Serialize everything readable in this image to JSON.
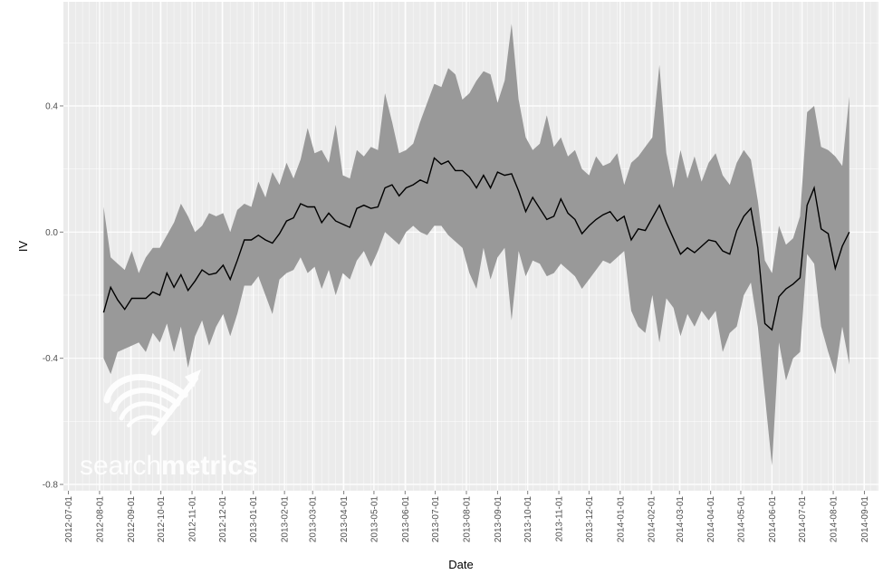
{
  "chart_data": {
    "type": "area",
    "xlabel": "Date",
    "ylabel": "IV",
    "x_ticks": [
      "2012-07-01",
      "2012-08-01",
      "2012-09-01",
      "2012-10-01",
      "2012-11-01",
      "2012-12-01",
      "2013-01-01",
      "2013-02-01",
      "2013-03-01",
      "2013-04-01",
      "2013-05-01",
      "2013-06-01",
      "2013-07-01",
      "2013-08-01",
      "2013-09-01",
      "2013-10-01",
      "2013-11-01",
      "2013-12-01",
      "2014-01-01",
      "2014-02-01",
      "2014-03-01",
      "2014-04-01",
      "2014-05-01",
      "2014-06-01",
      "2014-07-01",
      "2014-08-01",
      "2014-09-01"
    ],
    "y_ticks": [
      -0.8,
      -0.4,
      0.0,
      0.4
    ],
    "y_tick_labels": [
      "-0.8",
      "-0.4",
      "0.0",
      "0.4"
    ],
    "xlim": [
      "2012-06-26",
      "2014-09-15"
    ],
    "ylim": [
      -0.82,
      0.73
    ],
    "grid": true,
    "colors": {
      "panel": "#ebebeb",
      "grid": "#ffffff",
      "line": "#000000",
      "ribbon": "#999999",
      "axis_text": "#4d4d4d"
    },
    "watermark": "searchmetrics",
    "series": [
      {
        "x": [
          "2012-08-05",
          "2012-08-12",
          "2012-08-19",
          "2012-08-26",
          "2012-09-02",
          "2012-09-09",
          "2012-09-16",
          "2012-09-23",
          "2012-09-30",
          "2012-10-07",
          "2012-10-14",
          "2012-10-21",
          "2012-10-28",
          "2012-11-04",
          "2012-11-11",
          "2012-11-18",
          "2012-11-25",
          "2012-12-02",
          "2012-12-09",
          "2012-12-16",
          "2012-12-23",
          "2012-12-30",
          "2013-01-06",
          "2013-01-13",
          "2013-01-20",
          "2013-01-27",
          "2013-02-03",
          "2013-02-10",
          "2013-02-17",
          "2013-02-24",
          "2013-03-03",
          "2013-03-10",
          "2013-03-17",
          "2013-03-24",
          "2013-03-31",
          "2013-04-07",
          "2013-04-14",
          "2013-04-21",
          "2013-04-28",
          "2013-05-05",
          "2013-05-12",
          "2013-05-19",
          "2013-05-26",
          "2013-06-02",
          "2013-06-09",
          "2013-06-16",
          "2013-06-23",
          "2013-06-30",
          "2013-07-07",
          "2013-07-14",
          "2013-07-21",
          "2013-07-28",
          "2013-08-04",
          "2013-08-11",
          "2013-08-18",
          "2013-08-25",
          "2013-09-01",
          "2013-09-08",
          "2013-09-15",
          "2013-09-22",
          "2013-09-29",
          "2013-10-06",
          "2013-10-13",
          "2013-10-20",
          "2013-10-27",
          "2013-11-03",
          "2013-11-10",
          "2013-11-17",
          "2013-11-24",
          "2013-12-01",
          "2013-12-08",
          "2013-12-15",
          "2013-12-22",
          "2013-12-29",
          "2014-01-05",
          "2014-01-12",
          "2014-01-19",
          "2014-01-26",
          "2014-02-02",
          "2014-02-09",
          "2014-02-16",
          "2014-02-23",
          "2014-03-02",
          "2014-03-09",
          "2014-03-16",
          "2014-03-23",
          "2014-03-30",
          "2014-04-06",
          "2014-04-13",
          "2014-04-20",
          "2014-04-27",
          "2014-05-04",
          "2014-05-11",
          "2014-05-18",
          "2014-05-25",
          "2014-06-01",
          "2014-06-08",
          "2014-06-15",
          "2014-06-22",
          "2014-06-29",
          "2014-07-06",
          "2014-07-13",
          "2014-07-20",
          "2014-07-27",
          "2014-08-03",
          "2014-08-10",
          "2014-08-17"
        ],
        "y": [
          -0.255,
          -0.175,
          -0.215,
          -0.245,
          -0.21,
          -0.21,
          -0.21,
          -0.19,
          -0.2,
          -0.13,
          -0.175,
          -0.135,
          -0.185,
          -0.155,
          -0.12,
          -0.135,
          -0.13,
          -0.105,
          -0.15,
          -0.09,
          -0.025,
          -0.025,
          -0.01,
          -0.025,
          -0.035,
          -0.005,
          0.035,
          0.045,
          0.09,
          0.08,
          0.08,
          0.03,
          0.06,
          0.035,
          0.025,
          0.015,
          0.075,
          0.085,
          0.075,
          0.08,
          0.14,
          0.15,
          0.115,
          0.14,
          0.15,
          0.165,
          0.155,
          0.235,
          0.215,
          0.225,
          0.195,
          0.195,
          0.175,
          0.14,
          0.18,
          0.14,
          0.19,
          0.18,
          0.185,
          0.13,
          0.065,
          0.11,
          0.075,
          0.04,
          0.05,
          0.105,
          0.06,
          0.04,
          -0.005,
          0.02,
          0.04,
          0.055,
          0.065,
          0.035,
          0.05,
          -0.025,
          0.01,
          0.005,
          0.045,
          0.085,
          0.03,
          -0.02,
          -0.07,
          -0.05,
          -0.065,
          -0.045,
          -0.025,
          -0.03,
          -0.06,
          -0.07,
          0.005,
          0.05,
          0.075,
          -0.05,
          -0.29,
          -0.31,
          -0.205,
          -0.18,
          -0.165,
          -0.145,
          0.085,
          0.14,
          0.01,
          -0.005,
          -0.115,
          -0.045,
          0.0
        ],
        "lower": [
          -0.4,
          -0.45,
          -0.38,
          -0.37,
          -0.36,
          -0.35,
          -0.38,
          -0.32,
          -0.35,
          -0.29,
          -0.38,
          -0.3,
          -0.43,
          -0.33,
          -0.28,
          -0.36,
          -0.3,
          -0.26,
          -0.33,
          -0.26,
          -0.17,
          -0.17,
          -0.14,
          -0.2,
          -0.26,
          -0.15,
          -0.13,
          -0.12,
          -0.08,
          -0.13,
          -0.11,
          -0.18,
          -0.12,
          -0.2,
          -0.13,
          -0.15,
          -0.09,
          -0.06,
          -0.11,
          -0.06,
          0.0,
          -0.02,
          -0.04,
          0.0,
          0.02,
          0.0,
          -0.01,
          0.02,
          0.02,
          -0.01,
          -0.03,
          -0.05,
          -0.13,
          -0.18,
          -0.05,
          -0.15,
          -0.08,
          -0.05,
          -0.28,
          -0.06,
          -0.14,
          -0.09,
          -0.1,
          -0.14,
          -0.13,
          -0.1,
          -0.12,
          -0.14,
          -0.18,
          -0.15,
          -0.12,
          -0.09,
          -0.1,
          -0.08,
          -0.06,
          -0.25,
          -0.3,
          -0.32,
          -0.2,
          -0.35,
          -0.21,
          -0.24,
          -0.33,
          -0.26,
          -0.3,
          -0.25,
          -0.28,
          -0.25,
          -0.38,
          -0.32,
          -0.3,
          -0.2,
          -0.16,
          -0.3,
          -0.52,
          -0.74,
          -0.35,
          -0.47,
          -0.4,
          -0.38,
          -0.07,
          -0.1,
          -0.3,
          -0.38,
          -0.45,
          -0.3,
          -0.42
        ],
        "upper": [
          0.08,
          -0.08,
          -0.1,
          -0.12,
          -0.06,
          -0.13,
          -0.08,
          -0.05,
          -0.05,
          -0.01,
          0.03,
          0.09,
          0.05,
          0.0,
          0.02,
          0.06,
          0.05,
          0.06,
          0.0,
          0.07,
          0.09,
          0.08,
          0.16,
          0.11,
          0.19,
          0.15,
          0.22,
          0.17,
          0.23,
          0.33,
          0.25,
          0.26,
          0.22,
          0.34,
          0.18,
          0.17,
          0.26,
          0.24,
          0.27,
          0.26,
          0.44,
          0.35,
          0.25,
          0.26,
          0.28,
          0.35,
          0.41,
          0.47,
          0.46,
          0.52,
          0.5,
          0.42,
          0.44,
          0.48,
          0.51,
          0.5,
          0.41,
          0.48,
          0.66,
          0.42,
          0.3,
          0.26,
          0.28,
          0.37,
          0.27,
          0.3,
          0.24,
          0.26,
          0.2,
          0.18,
          0.24,
          0.21,
          0.22,
          0.25,
          0.15,
          0.22,
          0.24,
          0.27,
          0.3,
          0.53,
          0.25,
          0.14,
          0.26,
          0.17,
          0.24,
          0.16,
          0.22,
          0.25,
          0.18,
          0.15,
          0.22,
          0.26,
          0.23,
          0.1,
          -0.09,
          -0.13,
          0.02,
          -0.04,
          -0.02,
          0.05,
          0.38,
          0.4,
          0.27,
          0.26,
          0.24,
          0.21,
          0.43
        ]
      }
    ]
  }
}
